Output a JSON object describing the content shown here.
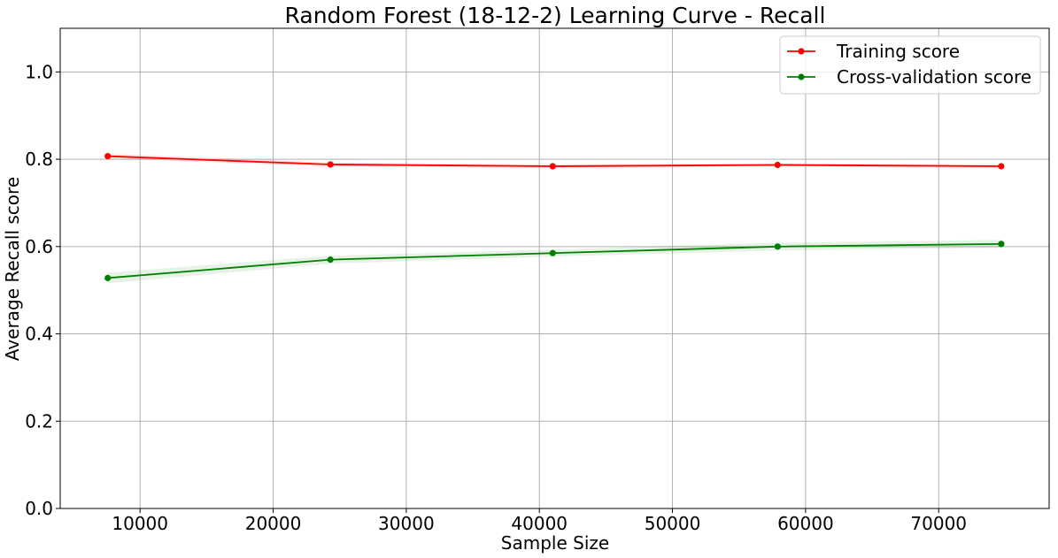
{
  "chart_data": {
    "type": "line",
    "title": "Random Forest (18-12-2) Learning Curve - Recall",
    "xlabel": "Sample Size",
    "ylabel": "Average Recall score",
    "xlim": [
      4000,
      78300
    ],
    "ylim": [
      0.0,
      1.1
    ],
    "x_ticks": [
      10000,
      20000,
      30000,
      40000,
      50000,
      60000,
      70000
    ],
    "y_ticks": [
      0.0,
      0.2,
      0.4,
      0.6,
      0.8,
      1.0
    ],
    "x_tick_labels": [
      "10000",
      "20000",
      "30000",
      "40000",
      "50000",
      "60000",
      "70000"
    ],
    "y_tick_labels": [
      "0.0",
      "0.2",
      "0.4",
      "0.6",
      "0.8",
      "1.0"
    ],
    "grid": true,
    "legend_position": "top-right",
    "x": [
      7570,
      24300,
      41000,
      57900,
      74700
    ],
    "series": [
      {
        "name": "Training score",
        "color": "#ff0000",
        "band_color": "#ff0000",
        "values": [
          0.807,
          0.788,
          0.784,
          0.787,
          0.784
        ],
        "std": [
          0.006,
          0.005,
          0.004,
          0.004,
          0.004
        ]
      },
      {
        "name": "Cross-validation score",
        "color": "#008000",
        "band_color": "#008000",
        "values": [
          0.528,
          0.57,
          0.585,
          0.6,
          0.606
        ],
        "std": [
          0.012,
          0.009,
          0.008,
          0.009,
          0.009
        ]
      }
    ]
  }
}
